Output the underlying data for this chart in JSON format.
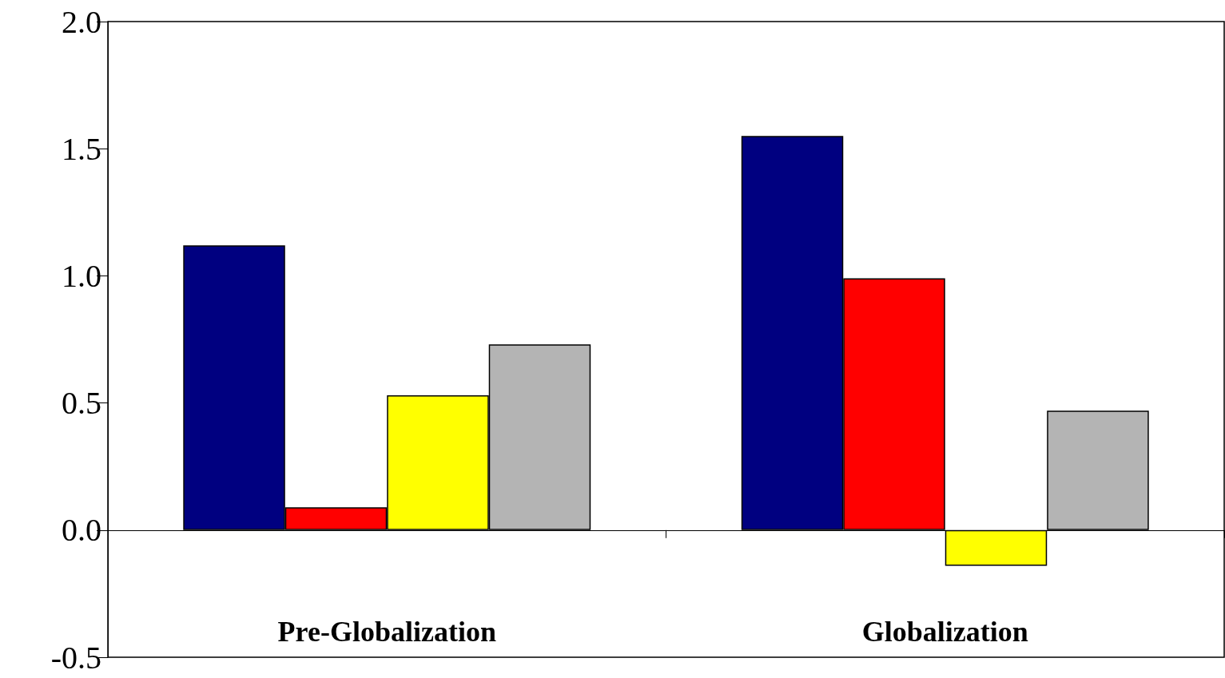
{
  "chart_data": {
    "type": "bar",
    "categories": [
      "Pre-Globalization",
      "Globalization"
    ],
    "series": [
      {
        "color": "#000080",
        "values": [
          1.12,
          1.55
        ]
      },
      {
        "color": "#ff0000",
        "values": [
          0.09,
          0.99
        ]
      },
      {
        "color": "#ffff00",
        "values": [
          0.53,
          -0.14
        ]
      },
      {
        "color": "#b4b4b4",
        "values": [
          0.73,
          0.47
        ]
      }
    ],
    "ylim": [
      -0.5,
      2.0
    ],
    "yticks": [
      {
        "value": -0.5,
        "label": "-0.5"
      },
      {
        "value": 0,
        "label": "0.0"
      },
      {
        "value": 0.5,
        "label": "0.5"
      },
      {
        "value": 1,
        "label": "1.0"
      },
      {
        "value": 1.5,
        "label": "1.5"
      },
      {
        "value": 2,
        "label": "2.0"
      }
    ],
    "tick_labels": true
  }
}
